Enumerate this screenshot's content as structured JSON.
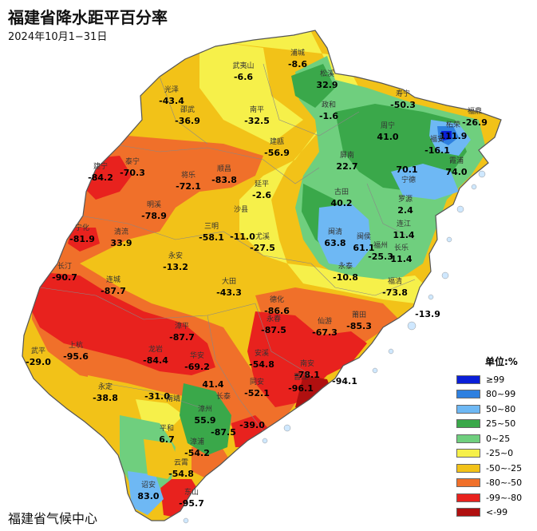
{
  "title": "福建省降水距平百分率",
  "subtitle": "2024年10月1−31日",
  "footer": "福建省气候中心",
  "legend": {
    "title": "单位:%",
    "items": [
      {
        "label": "≥99",
        "color": "#0a1fd8"
      },
      {
        "label": "80~99",
        "color": "#2e80e0"
      },
      {
        "label": "50~80",
        "color": "#6eb8f4"
      },
      {
        "label": "25~50",
        "color": "#3aa84a"
      },
      {
        "label": "0~25",
        "color": "#6fcf7e"
      },
      {
        "label": "-25~0",
        "color": "#f6f04a"
      },
      {
        "label": "-50~-25",
        "color": "#f2c218"
      },
      {
        "label": "-80~-50",
        "color": "#f0702a"
      },
      {
        "label": "-99~-80",
        "color": "#e8221e"
      },
      {
        "label": "<-99",
        "color": "#b01010"
      }
    ]
  },
  "stations": [
    {
      "name": "浦城",
      "value": "-8.6"
    },
    {
      "name": "武夷山",
      "value": "-6.6"
    },
    {
      "name": "光泽",
      "value": "-43.4"
    },
    {
      "name": "邵武",
      "value": "-36.9"
    },
    {
      "name": "南平",
      "value": "-32.5"
    },
    {
      "name": "松溪",
      "value": "32.9"
    },
    {
      "name": "政和",
      "value": "-1.6"
    },
    {
      "name": "寿宁",
      "value": "-50.3"
    },
    {
      "name": "福鼎",
      "value": "-26.9"
    },
    {
      "name": "柘荣",
      "value": "111.9"
    },
    {
      "name": "福安",
      "value": "-16.1"
    },
    {
      "name": "周宁",
      "value": "41.0"
    },
    {
      "name": "建瓯",
      "value": "-56.9"
    },
    {
      "name": "泰宁",
      "value": "-70.3"
    },
    {
      "name": "建宁",
      "value": "-84.2"
    },
    {
      "name": "将乐",
      "value": "-72.1"
    },
    {
      "name": "顺昌",
      "value": "-83.8"
    },
    {
      "name": "屏南",
      "value": "22.7"
    },
    {
      "name": "",
      "value": "70.1"
    },
    {
      "name": "霞浦",
      "value": "74.0"
    },
    {
      "name": "宁德",
      "value": ""
    },
    {
      "name": "延平",
      "value": "-2.6"
    },
    {
      "name": "古田",
      "value": "40.2"
    },
    {
      "name": "罗源",
      "value": "2.4"
    },
    {
      "name": "明溪",
      "value": "-78.9"
    },
    {
      "name": "沙县",
      "value": ""
    },
    {
      "name": "三明",
      "value": "-58.1"
    },
    {
      "name": "",
      "value": "-11.0"
    },
    {
      "name": "宁化",
      "value": "-81.9"
    },
    {
      "name": "清流",
      "value": "33.9"
    },
    {
      "name": "闽清",
      "value": "63.8"
    },
    {
      "name": "闽侯",
      "value": "61.1"
    },
    {
      "name": "连江",
      "value": "11.4"
    },
    {
      "name": "尤溪",
      "value": "-27.5"
    },
    {
      "name": "福州",
      "value": "-25.3"
    },
    {
      "name": "长乐",
      "value": "11.4"
    },
    {
      "name": "永安",
      "value": "-13.2"
    },
    {
      "name": "永泰",
      "value": "-10.8"
    },
    {
      "name": "长汀",
      "value": "-90.7"
    },
    {
      "name": "连城",
      "value": "-87.7"
    },
    {
      "name": "大田",
      "value": "-43.3"
    },
    {
      "name": "德化",
      "value": "-86.6"
    },
    {
      "name": "福清",
      "value": "-73.8"
    },
    {
      "name": "",
      "value": "-13.9"
    },
    {
      "name": "永春",
      "value": "-87.5"
    },
    {
      "name": "仙游",
      "value": "-67.3"
    },
    {
      "name": "莆田",
      "value": "-85.3"
    },
    {
      "name": "漳平",
      "value": "-87.7"
    },
    {
      "name": "武平",
      "value": "-29.0"
    },
    {
      "name": "上杭",
      "value": "-95.6"
    },
    {
      "name": "龙岩",
      "value": "-84.4"
    },
    {
      "name": "华安",
      "value": "-69.2"
    },
    {
      "name": "安溪",
      "value": "-54.8"
    },
    {
      "name": "南安",
      "value": "-78.1"
    },
    {
      "name": "同安",
      "value": "-52.1"
    },
    {
      "name": "晋江",
      "value": "-96.1"
    },
    {
      "name": "",
      "value": "-94.1"
    },
    {
      "name": "永定",
      "value": "-38.8"
    },
    {
      "name": "",
      "value": "-31.0"
    },
    {
      "name": "",
      "value": "41.4"
    },
    {
      "name": "长泰",
      "value": ""
    },
    {
      "name": "南靖",
      "value": ""
    },
    {
      "name": "漳州",
      "value": "55.9"
    },
    {
      "name": "",
      "value": "-39.0"
    },
    {
      "name": "",
      "value": "-87.5"
    },
    {
      "name": "平和",
      "value": "6.7"
    },
    {
      "name": "漳浦",
      "value": "-54.2"
    },
    {
      "name": "云霄",
      "value": "-54.8"
    },
    {
      "name": "诏安",
      "value": "83.0"
    },
    {
      "name": "东山",
      "value": "-95.7"
    }
  ]
}
